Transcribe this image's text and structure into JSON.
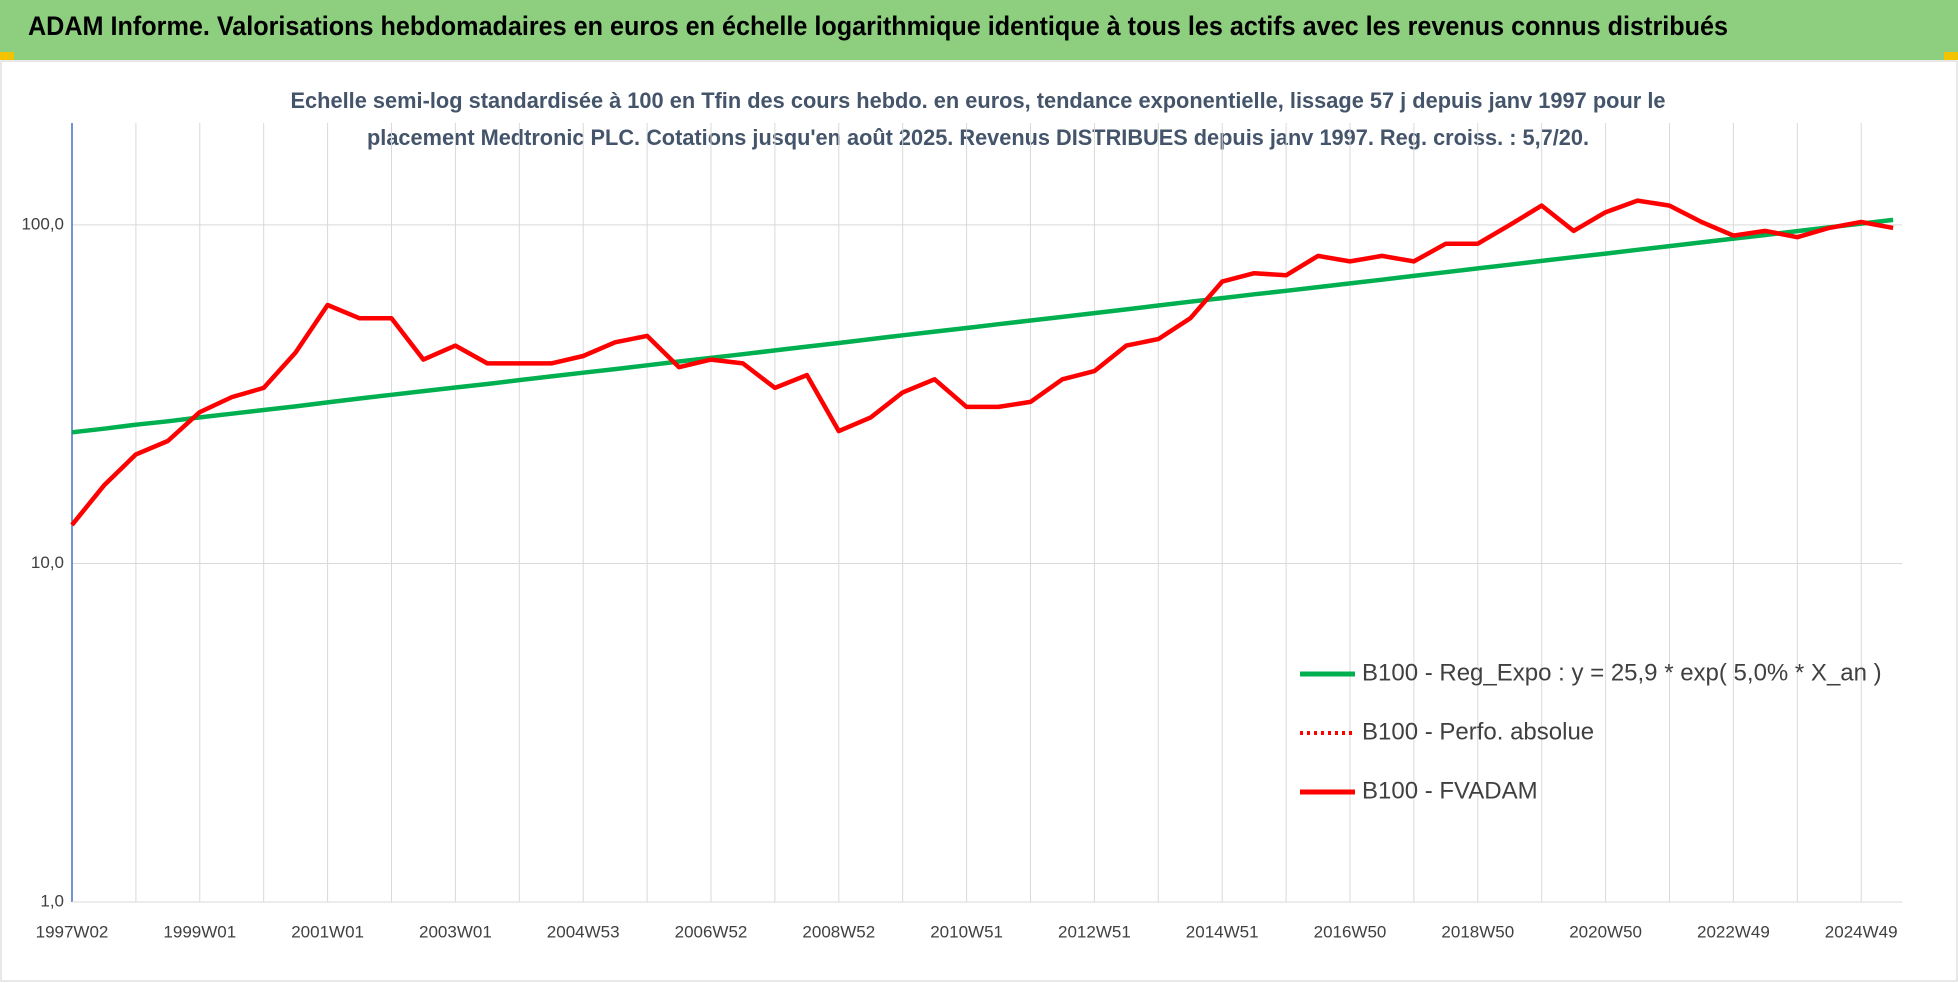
{
  "header": {
    "title": "ADAM Informe. Valorisations hebdomadaires en euros en échelle logarithmique identique à tous les actifs avec les revenus connus distribués"
  },
  "chart_data": {
    "type": "line",
    "subtitle": [
      "Echelle semi-log standardisée à 100 en Tfin des cours hebdo. en euros, tendance exponentielle, lissage 57 j depuis janv 1997 pour le",
      "placement Medtronic PLC. Cotations jusqu'en août 2025. Revenus DISTRIBUES depuis janv 1997. Reg. croiss. : 5,7/20."
    ],
    "categories": [
      "1997W02",
      null,
      null,
      null,
      "1999W01",
      null,
      null,
      null,
      "2001W01",
      null,
      null,
      null,
      "2003W01",
      null,
      null,
      null,
      "2004W53",
      null,
      null,
      null,
      "2006W52",
      null,
      null,
      null,
      "2008W52",
      null,
      null,
      null,
      "2010W51",
      null,
      null,
      null,
      "2012W51",
      null,
      null,
      null,
      "2014W51",
      null,
      null,
      null,
      "2016W50",
      null,
      null,
      null,
      "2018W50",
      null,
      null,
      null,
      "2020W50",
      null,
      null,
      null,
      "2022W49",
      null,
      null,
      null,
      "2024W49",
      null
    ],
    "log_scale": true,
    "grid": true,
    "legend": "bottom-right",
    "ylim": [
      1,
      200
    ],
    "yticks": [
      {
        "value": 1,
        "label": "1,0"
      },
      {
        "value": 10,
        "label": "10,0"
      },
      {
        "value": 100,
        "label": "100,0"
      }
    ],
    "series": [
      {
        "name": "B100 - Reg_Expo : y = 25,9 * exp( 5,0% *  X_an )",
        "color": "#00b050",
        "style": "solid",
        "values": [
          24.4,
          25.0,
          25.7,
          26.3,
          27.0,
          27.7,
          28.4,
          29.1,
          29.9,
          30.7,
          31.5,
          32.3,
          33.1,
          33.9,
          34.8,
          35.7,
          36.6,
          37.5,
          38.5,
          39.5,
          40.5,
          41.5,
          42.6,
          43.7,
          44.8,
          46.0,
          47.2,
          48.4,
          49.6,
          50.9,
          52.2,
          53.5,
          54.9,
          56.3,
          57.8,
          59.3,
          60.8,
          62.4,
          63.9,
          65.5,
          67.2,
          68.9,
          70.7,
          72.5,
          74.4,
          76.3,
          78.3,
          80.3,
          82.3,
          84.4,
          86.6,
          88.8,
          91.1,
          93.4,
          95.9,
          98.4,
          100.9,
          103.5
        ]
      },
      {
        "name": "B100 - Perfo. absolue",
        "color": "#ff0000",
        "style": "dotted",
        "values": [
          13,
          17,
          21,
          23,
          28,
          31,
          33,
          42,
          58,
          53,
          53,
          40,
          44,
          39,
          39,
          39,
          41,
          45,
          47,
          38,
          40,
          39,
          33,
          36,
          24.6,
          27,
          32,
          35,
          29,
          29,
          30,
          35,
          37,
          44,
          46,
          53,
          68,
          72,
          71,
          81,
          78,
          81,
          78,
          88,
          88,
          100,
          114,
          96,
          109,
          118,
          114,
          102,
          93,
          96,
          92,
          98,
          102,
          98
        ]
      },
      {
        "name": "B100 - FVADAM",
        "color": "#ff0000",
        "style": "solid",
        "values": [
          13,
          17,
          21,
          23,
          28,
          31,
          33,
          42,
          58,
          53,
          53,
          40,
          44,
          39,
          39,
          39,
          41,
          45,
          47,
          38,
          40,
          39,
          33,
          36,
          24.6,
          27,
          32,
          35,
          29,
          29,
          30,
          35,
          37,
          44,
          46,
          53,
          68,
          72,
          71,
          81,
          78,
          81,
          78,
          88,
          88,
          100,
          114,
          96,
          109,
          118,
          114,
          102,
          93,
          96,
          92,
          98,
          102,
          98
        ]
      }
    ]
  }
}
